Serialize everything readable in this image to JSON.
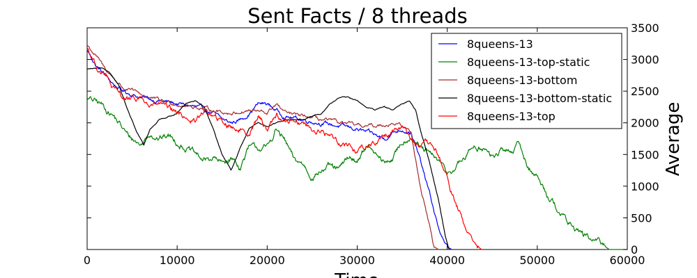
{
  "chart_data": {
    "type": "line",
    "title": "Sent Facts / 8 threads",
    "xlabel": "Time",
    "ylabel": "Average",
    "y_axis_side": "right",
    "xlim": [
      0,
      60000
    ],
    "ylim": [
      0,
      3500
    ],
    "x_ticks": [
      "0",
      "10000",
      "20000",
      "30000",
      "40000",
      "50000",
      "60000"
    ],
    "y_ticks": [
      "0",
      "500",
      "1000",
      "1500",
      "2000",
      "2500",
      "3000",
      "3500"
    ],
    "grid": false,
    "legend_position": "top-right",
    "series": [
      {
        "name": "8queens-13",
        "color": "#0000ff",
        "noise": 45,
        "points": [
          [
            0,
            3150
          ],
          [
            1000,
            2900
          ],
          [
            2000,
            2750
          ],
          [
            3000,
            2600
          ],
          [
            4000,
            2500
          ],
          [
            5000,
            2450
          ],
          [
            6000,
            2400
          ],
          [
            8000,
            2350
          ],
          [
            10000,
            2300
          ],
          [
            12000,
            2250
          ],
          [
            14000,
            2150
          ],
          [
            15000,
            2050
          ],
          [
            16000,
            2000
          ],
          [
            17000,
            2050
          ],
          [
            18000,
            2150
          ],
          [
            19000,
            2300
          ],
          [
            20000,
            2300
          ],
          [
            21000,
            2200
          ],
          [
            22000,
            2100
          ],
          [
            24000,
            2050
          ],
          [
            26000,
            2000
          ],
          [
            28000,
            1950
          ],
          [
            30000,
            1900
          ],
          [
            32000,
            1800
          ],
          [
            33000,
            1750
          ],
          [
            34000,
            1850
          ],
          [
            35000,
            1900
          ],
          [
            36000,
            1850
          ],
          [
            37000,
            1400
          ],
          [
            38000,
            900
          ],
          [
            39000,
            350
          ],
          [
            39800,
            60
          ],
          [
            40500,
            0
          ]
        ]
      },
      {
        "name": "8queens-13-top-static",
        "color": "#008000",
        "noise": 70,
        "points": [
          [
            0,
            2380
          ],
          [
            1500,
            2300
          ],
          [
            3000,
            2100
          ],
          [
            4500,
            1800
          ],
          [
            6000,
            1650
          ],
          [
            7000,
            1850
          ],
          [
            8000,
            1750
          ],
          [
            9000,
            1800
          ],
          [
            10000,
            1700
          ],
          [
            12000,
            1500
          ],
          [
            13000,
            1400
          ],
          [
            14000,
            1450
          ],
          [
            15000,
            1350
          ],
          [
            16000,
            1450
          ],
          [
            17000,
            1300
          ],
          [
            18000,
            1600
          ],
          [
            20000,
            1600
          ],
          [
            21000,
            1900
          ],
          [
            22000,
            1700
          ],
          [
            23000,
            1400
          ],
          [
            24000,
            1350
          ],
          [
            25000,
            1150
          ],
          [
            26000,
            1250
          ],
          [
            27000,
            1300
          ],
          [
            28000,
            1250
          ],
          [
            29000,
            1450
          ],
          [
            30000,
            1400
          ],
          [
            31000,
            1650
          ],
          [
            32000,
            1500
          ],
          [
            33000,
            1350
          ],
          [
            34000,
            1450
          ],
          [
            35000,
            1700
          ],
          [
            36000,
            1800
          ],
          [
            37000,
            1600
          ],
          [
            38000,
            1500
          ],
          [
            39000,
            1400
          ],
          [
            40000,
            1200
          ],
          [
            41000,
            1300
          ],
          [
            42000,
            1450
          ],
          [
            43000,
            1650
          ],
          [
            44000,
            1600
          ],
          [
            45000,
            1450
          ],
          [
            46000,
            1550
          ],
          [
            47000,
            1550
          ],
          [
            48000,
            1650
          ],
          [
            49000,
            1300
          ],
          [
            50000,
            1150
          ],
          [
            51000,
            900
          ],
          [
            52000,
            700
          ],
          [
            53000,
            500
          ],
          [
            54000,
            350
          ],
          [
            55000,
            250
          ],
          [
            56000,
            150
          ],
          [
            57000,
            100
          ],
          [
            58000,
            0
          ],
          [
            60000,
            0
          ]
        ]
      },
      {
        "name": "8queens-13-bottom",
        "color": "#a52a2a",
        "noise": 40,
        "points": [
          [
            0,
            3230
          ],
          [
            1000,
            3050
          ],
          [
            2000,
            2850
          ],
          [
            3000,
            2700
          ],
          [
            4000,
            2550
          ],
          [
            5000,
            2500
          ],
          [
            6000,
            2450
          ],
          [
            7000,
            2400
          ],
          [
            8000,
            2350
          ],
          [
            10000,
            2300
          ],
          [
            12000,
            2250
          ],
          [
            14000,
            2200
          ],
          [
            16000,
            2150
          ],
          [
            18000,
            2200
          ],
          [
            20000,
            2150
          ],
          [
            21000,
            2300
          ],
          [
            22000,
            2150
          ],
          [
            24000,
            2100
          ],
          [
            26000,
            2050
          ],
          [
            28000,
            2000
          ],
          [
            30000,
            1950
          ],
          [
            32000,
            1950
          ],
          [
            34000,
            2000
          ],
          [
            35000,
            1950
          ],
          [
            36000,
            1850
          ],
          [
            37000,
            1000
          ],
          [
            38000,
            400
          ],
          [
            38500,
            50
          ],
          [
            39000,
            0
          ]
        ]
      },
      {
        "name": "8queens-13-bottom-static",
        "color": "#000000",
        "noise": 12,
        "points": [
          [
            0,
            2850
          ],
          [
            1500,
            2860
          ],
          [
            2500,
            2800
          ],
          [
            3500,
            2600
          ],
          [
            4500,
            2200
          ],
          [
            5500,
            1850
          ],
          [
            6300,
            1650
          ],
          [
            7000,
            1900
          ],
          [
            8000,
            2050
          ],
          [
            9000,
            2100
          ],
          [
            10000,
            2150
          ],
          [
            11000,
            2300
          ],
          [
            12000,
            2350
          ],
          [
            13000,
            2250
          ],
          [
            14000,
            1900
          ],
          [
            15000,
            1500
          ],
          [
            16000,
            1250
          ],
          [
            17000,
            1600
          ],
          [
            18000,
            1900
          ],
          [
            19000,
            2000
          ],
          [
            20000,
            1950
          ],
          [
            22000,
            2050
          ],
          [
            24000,
            2050
          ],
          [
            26000,
            2150
          ],
          [
            27000,
            2300
          ],
          [
            28000,
            2400
          ],
          [
            29000,
            2400
          ],
          [
            30000,
            2350
          ],
          [
            31000,
            2250
          ],
          [
            32000,
            2200
          ],
          [
            33000,
            2250
          ],
          [
            34000,
            2200
          ],
          [
            35000,
            2300
          ],
          [
            35800,
            2350
          ],
          [
            36500,
            2200
          ],
          [
            37000,
            1900
          ],
          [
            38000,
            1400
          ],
          [
            39000,
            800
          ],
          [
            39800,
            200
          ],
          [
            40200,
            0
          ]
        ]
      },
      {
        "name": "8queens-13-top",
        "color": "#ff0000",
        "noise": 70,
        "points": [
          [
            0,
            3200
          ],
          [
            1000,
            2900
          ],
          [
            2000,
            2750
          ],
          [
            3000,
            2500
          ],
          [
            4000,
            2400
          ],
          [
            5000,
            2350
          ],
          [
            6000,
            2400
          ],
          [
            7000,
            2250
          ],
          [
            8000,
            2300
          ],
          [
            9000,
            2200
          ],
          [
            10000,
            2150
          ],
          [
            11000,
            2100
          ],
          [
            12000,
            2000
          ],
          [
            13000,
            2200
          ],
          [
            14000,
            2100
          ],
          [
            15000,
            2000
          ],
          [
            16000,
            1950
          ],
          [
            17000,
            1900
          ],
          [
            18000,
            1850
          ],
          [
            19000,
            2100
          ],
          [
            20000,
            1900
          ],
          [
            21000,
            2150
          ],
          [
            22000,
            2000
          ],
          [
            23000,
            2050
          ],
          [
            24000,
            2000
          ],
          [
            25000,
            1900
          ],
          [
            26000,
            1850
          ],
          [
            27000,
            1800
          ],
          [
            28000,
            1700
          ],
          [
            29000,
            1650
          ],
          [
            30000,
            1550
          ],
          [
            31000,
            1650
          ],
          [
            32000,
            1700
          ],
          [
            33000,
            1800
          ],
          [
            34000,
            1900
          ],
          [
            35000,
            1950
          ],
          [
            36000,
            1750
          ],
          [
            37000,
            1600
          ],
          [
            38000,
            1650
          ],
          [
            39000,
            1500
          ],
          [
            40000,
            1100
          ],
          [
            41000,
            700
          ],
          [
            42000,
            350
          ],
          [
            43000,
            100
          ],
          [
            43800,
            0
          ]
        ]
      }
    ]
  }
}
